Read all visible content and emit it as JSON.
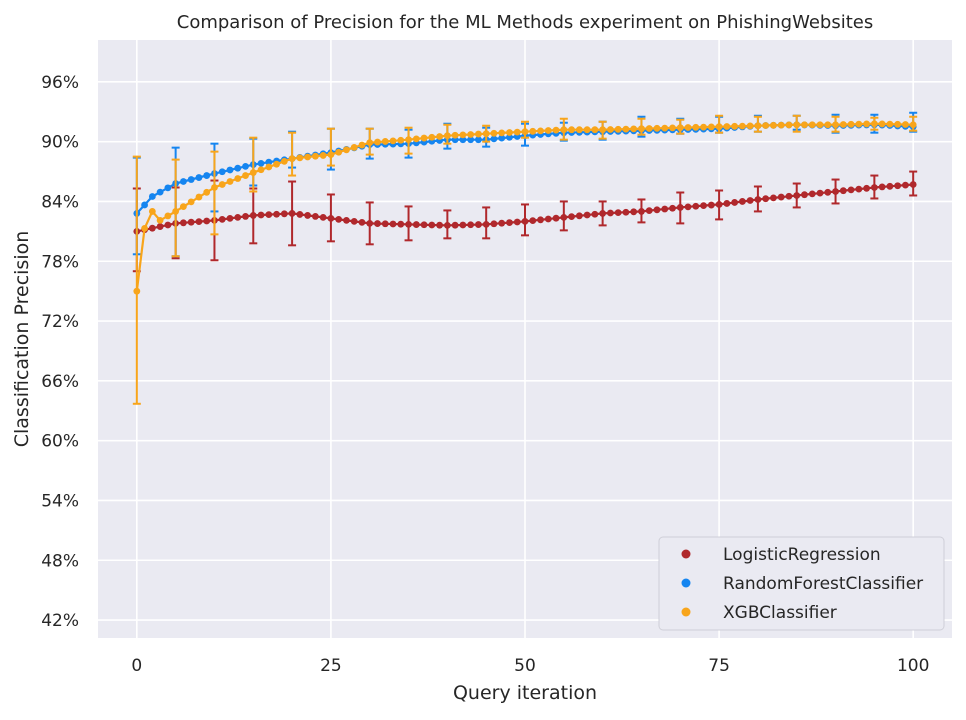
{
  "chart_data": {
    "type": "line",
    "title": "Comparison of Precision for the ML Methods experiment on PhishingWebsites",
    "xlabel": "Query iteration",
    "ylabel": "Classification Precision",
    "xlim": [
      -5,
      105
    ],
    "ylim": [
      40.2,
      100.2
    ],
    "x_ticks": [
      0,
      25,
      50,
      75,
      100
    ],
    "x_tick_labels": [
      "0",
      "25",
      "50",
      "75",
      "100"
    ],
    "y_ticks": [
      42,
      48,
      54,
      60,
      66,
      72,
      78,
      84,
      90,
      96
    ],
    "y_tick_labels": [
      "42%",
      "48%",
      "54%",
      "60%",
      "66%",
      "72%",
      "78%",
      "84%",
      "90%",
      "96%"
    ],
    "grid": true,
    "legend_position": "lower-right",
    "colors": {
      "background": "#eaeaf2",
      "grid": "#ffffff",
      "LogisticRegression": "#b0282c",
      "RandomForestClassifier": "#1585f0",
      "XGBClassifier": "#f8a51b"
    },
    "series": [
      {
        "name": "LogisticRegression",
        "color": "#b0282c",
        "points": [
          [
            0,
            81.0
          ],
          [
            5,
            81.8
          ],
          [
            10,
            82.1
          ],
          [
            15,
            82.6
          ],
          [
            20,
            82.8
          ],
          [
            25,
            82.3
          ],
          [
            30,
            81.8
          ],
          [
            35,
            81.7
          ],
          [
            40,
            81.6
          ],
          [
            45,
            81.7
          ],
          [
            50,
            82.0
          ],
          [
            55,
            82.4
          ],
          [
            60,
            82.8
          ],
          [
            65,
            83.0
          ],
          [
            70,
            83.4
          ],
          [
            75,
            83.7
          ],
          [
            80,
            84.2
          ],
          [
            85,
            84.6
          ],
          [
            90,
            85.0
          ],
          [
            95,
            85.4
          ],
          [
            100,
            85.7
          ]
        ],
        "errors": [
          [
            0,
            77.0,
            85.3
          ],
          [
            5,
            78.3,
            85.4
          ],
          [
            10,
            78.1,
            86.1
          ],
          [
            15,
            79.8,
            85.3
          ],
          [
            20,
            79.6,
            86.0
          ],
          [
            25,
            80.0,
            84.7
          ],
          [
            30,
            79.7,
            83.9
          ],
          [
            35,
            80.1,
            83.5
          ],
          [
            40,
            80.3,
            83.1
          ],
          [
            45,
            80.3,
            83.4
          ],
          [
            50,
            80.6,
            83.7
          ],
          [
            55,
            81.1,
            84.0
          ],
          [
            60,
            81.6,
            84.0
          ],
          [
            65,
            81.9,
            84.2
          ],
          [
            70,
            81.8,
            84.9
          ],
          [
            75,
            82.2,
            85.1
          ],
          [
            80,
            83.0,
            85.5
          ],
          [
            85,
            83.4,
            85.8
          ],
          [
            90,
            83.8,
            86.2
          ],
          [
            95,
            84.3,
            86.6
          ],
          [
            100,
            84.6,
            87.0
          ]
        ]
      },
      {
        "name": "RandomForestClassifier",
        "color": "#1585f0",
        "points": [
          [
            0,
            82.8
          ],
          [
            2,
            84.5
          ],
          [
            5,
            85.8
          ],
          [
            10,
            86.8
          ],
          [
            15,
            87.7
          ],
          [
            20,
            88.3
          ],
          [
            25,
            88.9
          ],
          [
            30,
            89.7
          ],
          [
            35,
            89.8
          ],
          [
            40,
            90.2
          ],
          [
            45,
            90.2
          ],
          [
            50,
            90.6
          ],
          [
            55,
            90.9
          ],
          [
            60,
            91.0
          ],
          [
            65,
            91.1
          ],
          [
            70,
            91.2
          ],
          [
            75,
            91.3
          ],
          [
            80,
            91.6
          ],
          [
            85,
            91.7
          ],
          [
            90,
            91.6
          ],
          [
            95,
            91.7
          ],
          [
            100,
            91.5
          ]
        ],
        "errors": [
          [
            0,
            78.7,
            88.4
          ],
          [
            5,
            78.5,
            89.4
          ],
          [
            10,
            83.0,
            89.8
          ],
          [
            15,
            85.6,
            90.3
          ],
          [
            20,
            87.4,
            91.0
          ],
          [
            25,
            87.2,
            91.3
          ],
          [
            30,
            88.3,
            91.3
          ],
          [
            35,
            88.4,
            91.2
          ],
          [
            40,
            89.3,
            91.8
          ],
          [
            45,
            89.5,
            91.4
          ],
          [
            50,
            89.6,
            91.8
          ],
          [
            55,
            90.1,
            91.9
          ],
          [
            60,
            90.2,
            92.0
          ],
          [
            65,
            90.5,
            92.5
          ],
          [
            70,
            90.8,
            92.3
          ],
          [
            75,
            90.9,
            92.5
          ],
          [
            80,
            91.0,
            92.6
          ],
          [
            85,
            91.2,
            92.6
          ],
          [
            90,
            90.9,
            92.7
          ],
          [
            95,
            90.9,
            92.7
          ],
          [
            100,
            91.0,
            92.9
          ]
        ]
      },
      {
        "name": "XGBClassifier",
        "color": "#f8a51b",
        "points": [
          [
            0,
            75.0
          ],
          [
            1,
            81.3
          ],
          [
            2,
            83.0
          ],
          [
            3,
            82.1
          ],
          [
            5,
            83.0
          ],
          [
            10,
            85.4
          ],
          [
            15,
            86.9
          ],
          [
            20,
            88.3
          ],
          [
            25,
            88.7
          ],
          [
            30,
            89.9
          ],
          [
            35,
            90.2
          ],
          [
            40,
            90.6
          ],
          [
            45,
            90.8
          ],
          [
            50,
            91.0
          ],
          [
            55,
            91.2
          ],
          [
            60,
            91.2
          ],
          [
            65,
            91.3
          ],
          [
            70,
            91.4
          ],
          [
            75,
            91.5
          ],
          [
            80,
            91.6
          ],
          [
            85,
            91.7
          ],
          [
            90,
            91.7
          ],
          [
            95,
            91.8
          ],
          [
            100,
            91.7
          ]
        ],
        "errors": [
          [
            0,
            63.7,
            88.5
          ],
          [
            5,
            78.5,
            88.2
          ],
          [
            10,
            80.7,
            89.0
          ],
          [
            15,
            85.0,
            90.4
          ],
          [
            20,
            86.6,
            90.9
          ],
          [
            25,
            87.6,
            91.3
          ],
          [
            30,
            88.7,
            91.3
          ],
          [
            35,
            88.8,
            91.4
          ],
          [
            40,
            89.8,
            91.7
          ],
          [
            45,
            90.0,
            91.6
          ],
          [
            50,
            90.4,
            92.0
          ],
          [
            55,
            90.2,
            92.3
          ],
          [
            60,
            90.3,
            92.0
          ],
          [
            65,
            90.7,
            92.3
          ],
          [
            70,
            90.8,
            92.2
          ],
          [
            75,
            90.9,
            92.6
          ],
          [
            80,
            91.0,
            92.5
          ],
          [
            85,
            91.0,
            92.6
          ],
          [
            90,
            91.0,
            92.5
          ],
          [
            95,
            91.2,
            92.4
          ],
          [
            100,
            91.1,
            92.5
          ]
        ]
      }
    ]
  }
}
